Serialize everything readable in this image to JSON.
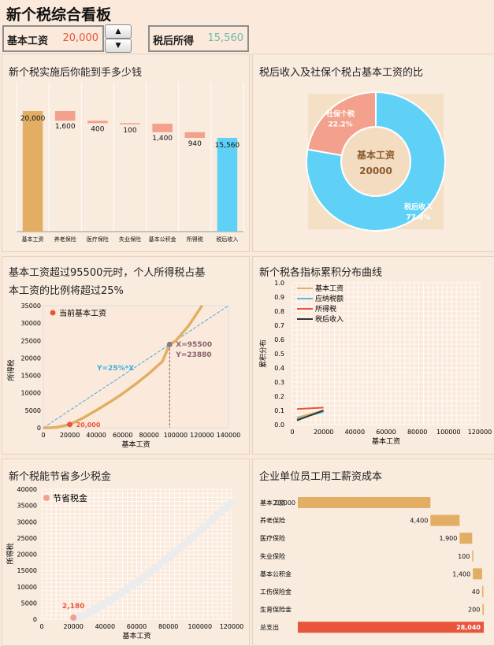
{
  "title": "新个税综合看板",
  "header": {
    "salary_label": "基本工资",
    "salary_value": "20,000",
    "after_tax_label": "税后所得",
    "after_tax_value": "15,560",
    "spin_up": "▲",
    "spin_down": "▼"
  },
  "panels": {
    "waterfall_title": "新个税实施后你能到手多少钱",
    "donut_title": "税后收入及社保个税占基本工资的比",
    "tax_ratio_title_1": "基本工资超过95500元时，个人所得税占基",
    "tax_ratio_title_2": "本工资的比例将超过25%",
    "cumulative_title": "新个税各指标累积分布曲线",
    "savings_title": "新个税能节省多少税金",
    "cost_title": "企业单位员工用工薪资成本"
  },
  "colors": {
    "orange": "#e2ae64",
    "salmon": "#f3a08c",
    "blue": "#5fd1f7",
    "red": "#e8553a",
    "text_red": "#e8553a",
    "text_teal": "#6fb8b0",
    "grid": "#ffffff"
  },
  "chart_data": [
    {
      "type": "bar",
      "subtype": "waterfall",
      "categories": [
        "基本工资",
        "养老保险",
        "医疗保险",
        "失业保险",
        "基本公积金",
        "所得税",
        "税后收入"
      ],
      "values": [
        20000,
        1600,
        400,
        100,
        1400,
        940,
        15560
      ],
      "labels": [
        "20,000",
        "1,600",
        "400",
        "100",
        "1,400",
        "940",
        "15,560"
      ]
    },
    {
      "type": "pie",
      "subtype": "donut",
      "center_label": "基本工资",
      "center_value": "20000",
      "slices": [
        {
          "name": "社保个税",
          "value": 22.2,
          "label": "22.2%"
        },
        {
          "name": "税后收入",
          "value": 77.8,
          "label": "77.8%"
        }
      ]
    },
    {
      "type": "line",
      "xlabel": "基本工资",
      "ylabel": "所得税",
      "xlim": [
        0,
        140000
      ],
      "ylim": [
        0,
        35000
      ],
      "xticks": [
        "0",
        "20000",
        "40000",
        "60000",
        "80000",
        "100000",
        "120000",
        "140000"
      ],
      "yticks": [
        "0",
        "5000",
        "10000",
        "15000",
        "20000",
        "25000",
        "30000",
        "35000"
      ],
      "legend": "当前基本工资",
      "current_point": {
        "x": 20000,
        "y": 940,
        "label": "20,000"
      },
      "intersection": {
        "x": 95500,
        "y": 23880,
        "label_x": "X=95500",
        "label_y": "Y=23880"
      },
      "line_label": "Y=25%*X",
      "tax_curve": [
        [
          0,
          0
        ],
        [
          5000,
          0
        ],
        [
          10000,
          150
        ],
        [
          20000,
          940
        ],
        [
          30000,
          2800
        ],
        [
          40000,
          5000
        ],
        [
          50000,
          7300
        ],
        [
          60000,
          9800
        ],
        [
          70000,
          12600
        ],
        [
          80000,
          15600
        ],
        [
          90000,
          19000
        ],
        [
          95500,
          23880
        ],
        [
          100000,
          24900
        ],
        [
          110000,
          29300
        ],
        [
          120000,
          35000
        ]
      ],
      "ratio_line": [
        [
          0,
          0
        ],
        [
          140000,
          35000
        ]
      ]
    },
    {
      "type": "line",
      "xlabel": "基本工资",
      "ylabel": "累积分布",
      "xlim": [
        0,
        120000
      ],
      "ylim": [
        0,
        1.0
      ],
      "xticks": [
        "0",
        "20000",
        "40000",
        "60000",
        "80000",
        "100000",
        "120000"
      ],
      "yticks": [
        "0.0",
        "0.1",
        "0.2",
        "0.3",
        "0.4",
        "0.5",
        "0.6",
        "0.7",
        "0.8",
        "0.9",
        "1.0"
      ],
      "series": [
        {
          "name": "基本工资",
          "color": "#e2ae64",
          "points": [
            [
              3000,
              0.05
            ],
            [
              20000,
              0.1
            ]
          ]
        },
        {
          "name": "应纳税额",
          "color": "#5bb8d8",
          "points": [
            [
              3000,
              0.04
            ],
            [
              20000,
              0.09
            ]
          ]
        },
        {
          "name": "所得税",
          "color": "#e8553a",
          "points": [
            [
              3000,
              0.11
            ],
            [
              20000,
              0.12
            ]
          ]
        },
        {
          "name": "税后收入",
          "color": "#333333",
          "points": [
            [
              3000,
              0.03
            ],
            [
              20000,
              0.1
            ]
          ]
        }
      ]
    },
    {
      "type": "scatter",
      "xlabel": "基本工资",
      "ylabel": "所得税",
      "xlim": [
        0,
        120000
      ],
      "ylim": [
        0,
        40000
      ],
      "xticks": [
        "0",
        "20000",
        "40000",
        "60000",
        "80000",
        "100000",
        "120000"
      ],
      "yticks": [
        "0",
        "5000",
        "10000",
        "15000",
        "20000",
        "25000",
        "30000",
        "35000",
        "40000"
      ],
      "legend": "节省税金",
      "current_point": {
        "x": 20000,
        "y": 500,
        "label": "2,180"
      }
    },
    {
      "type": "bar",
      "orientation": "horizontal",
      "categories": [
        "基本工资",
        "养老保险",
        "医疗保险",
        "失业保险",
        "基本公积金",
        "工伤保险金",
        "生育保险金",
        "总支出"
      ],
      "values": [
        20000,
        4400,
        1900,
        100,
        1400,
        40,
        200,
        28040
      ],
      "labels": [
        "20,000",
        "4,400",
        "1,900",
        "100",
        "1,400",
        "40",
        "200",
        "28,040"
      ]
    }
  ]
}
